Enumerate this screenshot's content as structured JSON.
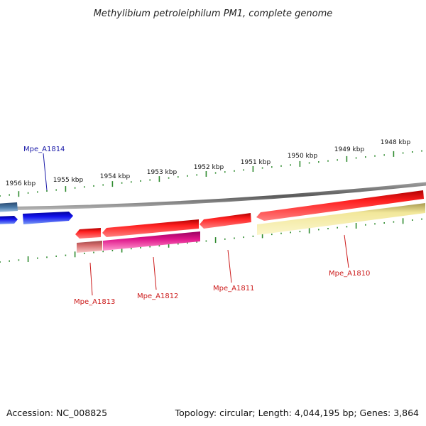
{
  "title": "Methylibium petroleiphilum PM1, complete genome",
  "footer": {
    "accession": "Accession: NC_008825",
    "summary": "Topology: circular; Length: 4,044,195 bp; Genes: 3,864"
  },
  "colors": {
    "backbone": "#7a7a7a",
    "tick": "#2e8b2e",
    "forward_label": "#1a1aa8",
    "reverse_label": "#cc1a1a",
    "blue_gene": "#1010e0",
    "steel_gene": "#4a7aa8",
    "red_gene": "#ee0f0f",
    "magenta_gene": "#e0158a",
    "salmon_gene": "#d87070",
    "khaki_gene": "#f2e79a"
  },
  "scale_labels": [
    "1948 kbp",
    "1949 kbp",
    "1950 kbp",
    "1951 kbp",
    "1952 kbp",
    "1953 kbp",
    "1954 kbp",
    "1955 kbp",
    "1956 kbp"
  ],
  "gene_labels": [
    {
      "text": "Mpe_A1814",
      "strand": "forward"
    },
    {
      "text": "Mpe_A1813",
      "strand": "reverse"
    },
    {
      "text": "Mpe_A1812",
      "strand": "reverse"
    },
    {
      "text": "Mpe_A1811",
      "strand": "reverse"
    },
    {
      "text": "Mpe_A1810",
      "strand": "reverse"
    }
  ]
}
